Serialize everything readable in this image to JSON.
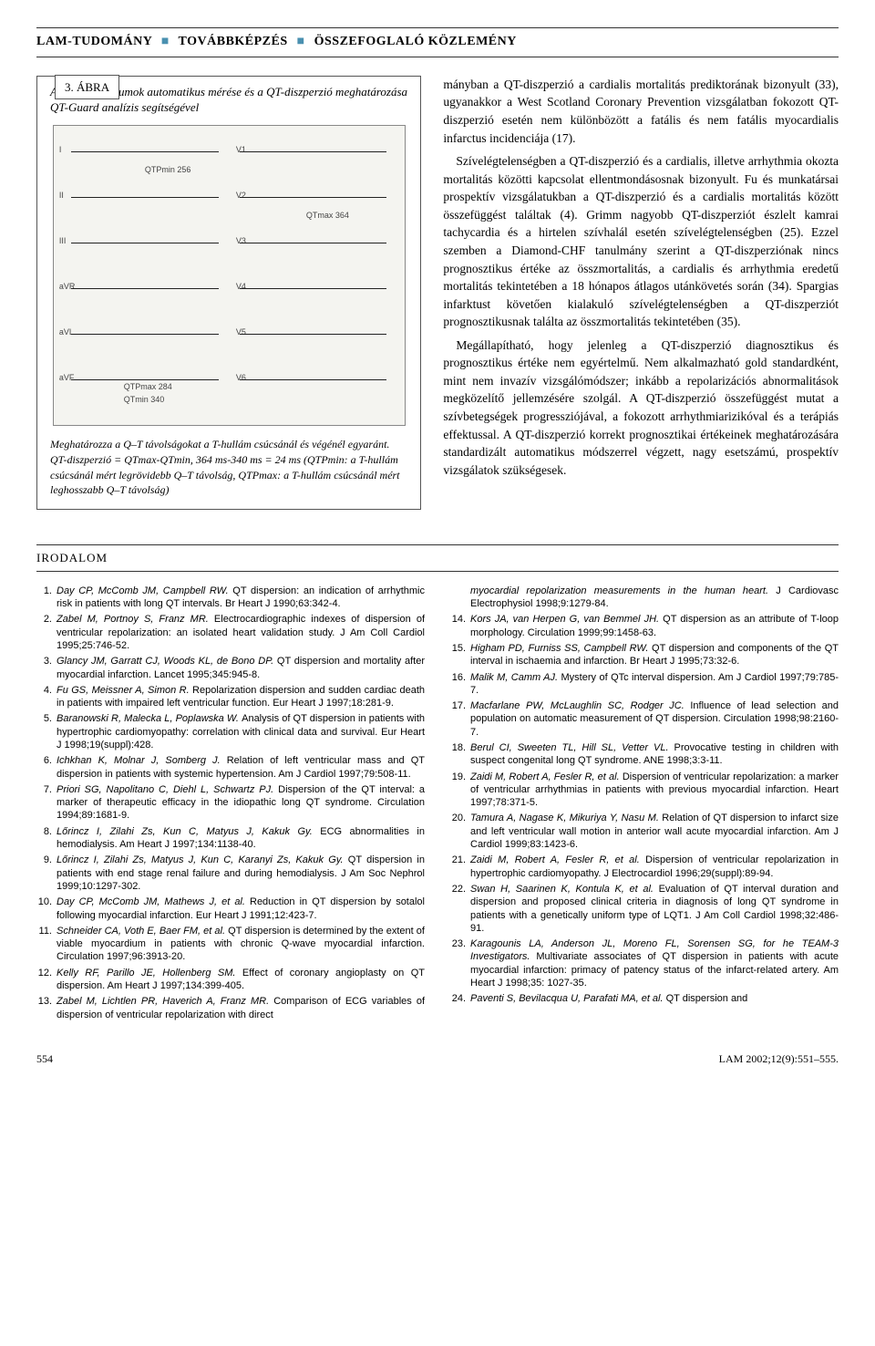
{
  "header": {
    "part1": "LAM-TUDOMÁNY",
    "part2": "TOVÁBBKÉPZÉS",
    "part3": "ÖSSZEFOGLALÓ KÖZLEMÉNY"
  },
  "figure": {
    "label": "3. ÁBRA",
    "title": "A QT-intervallumok automatikus mérése és a QT-diszperzió meghatározása QT-Guard analízis segítségével",
    "ecg_labels": {
      "qtpmin": "QTPmin 256",
      "qtpmax_left": "QTPmax 284",
      "qtmin": "QTmin 340",
      "qtmax_right": "QTmax 364",
      "leads_left": [
        "I",
        "II",
        "III",
        "aVR",
        "aVL",
        "aVF"
      ],
      "leads_right": [
        "V1",
        "V2",
        "V3",
        "V4",
        "V5",
        "V6"
      ]
    },
    "caption_1": "Meghatározza a Q–T távolságokat a T-hullám csúcsánál és végénél egyaránt.",
    "caption_2": "QT-diszperzió = QTmax-QTmin, 364 ms-340 ms = 24 ms (QTPmin: a T-hullám csúcsánál mért legrövidebb Q–T távolság, QTPmax: a T-hullám csúcsánál mért leghosszabb Q–T távolság)"
  },
  "body": {
    "p1": "mányban a QT-diszperzió a cardialis mortalitás prediktorának bizonyult (33), ugyanakkor a West Scotland Coronary Prevention vizsgálatban fokozott QT-diszperzió esetén nem különbözött a fatális és nem fatális myocardialis infarctus incidenciája (17).",
    "p2": "Szívelégtelenségben a QT-diszperzió és a cardialis, illetve arrhythmia okozta mortalitás közötti kapcsolat ellentmondásosnak bizonyult. Fu és munkatársai prospektív vizsgálatukban a QT-diszperzió és a cardialis mortalitás között összefüggést találtak (4). Grimm nagyobb QT-diszperziót észlelt kamrai tachycardia és a hirtelen szívhalál esetén szívelégtelenségben (25). Ezzel szemben a Diamond-CHF tanulmány szerint a QT-diszperziónak nincs prognosztikus értéke az összmortalitás, a cardialis és arrhythmia eredetű mortalitás tekintetében a 18 hónapos átlagos utánkövetés során (34). Spargias infarktust követően kialakuló szívelégtelenségben a QT-diszperziót prognosztikusnak találta az összmortalitás tekintetében (35).",
    "p3": "Megállapítható, hogy jelenleg a QT-diszperzió diagnosztikus és prognosztikus értéke nem egyértelmű. Nem alkalmazható gold standardként, mint nem invazív vizsgálómódszer; inkább a repolarizációs abnormalitások megközelítő jellemzésére szolgál. A QT-diszperzió összefüggést mutat a szívbetegségek progressziójával, a fokozott arrhythmiarizikóval és a terápiás effektussal. A QT-diszperzió korrekt prognosztikai értékeinek meghatározására standardizált automatikus módszerrel végzett, nagy esetszámú, prospektív vizsgálatok szükségesek."
  },
  "section": {
    "irodalom": "IRODALOM"
  },
  "refs_left": [
    {
      "n": "1.",
      "t": "Day CP, McComb JM, Campbell RW. QT dispersion: an indication of arrhythmic risk in patients with long QT intervals. Br Heart J 1990;63:342-4."
    },
    {
      "n": "2.",
      "t": "Zabel M, Portnoy S, Franz MR. Electrocardiographic indexes of dispersion of ventricular repolarization: an isolated heart validation study. J Am Coll Cardiol 1995;25:746-52."
    },
    {
      "n": "3.",
      "t": "Glancy JM, Garratt CJ, Woods KL, de Bono DP. QT dispersion and mortality after myocardial infarction. Lancet 1995;345:945-8."
    },
    {
      "n": "4.",
      "t": "Fu GS, Meissner A, Simon R. Repolarization dispersion and sudden cardiac death in patients with impaired left ventricular function. Eur Heart J 1997;18:281-9."
    },
    {
      "n": "5.",
      "t": "Baranowski R, Malecka L, Poplawska W. Analysis of QT dispersion in patients with hypertrophic cardiomyopathy: correlation with clinical data and survival. Eur Heart J 1998;19(suppl):428."
    },
    {
      "n": "6.",
      "t": "Ichkhan K, Molnar J, Somberg J. Relation of left ventricular mass and QT dispersion in patients with systemic hypertension. Am J Cardiol 1997;79:508-11."
    },
    {
      "n": "7.",
      "t": "Priori SG, Napolitano C, Diehl L, Schwartz PJ. Dispersion of the QT interval: a marker of therapeutic efficacy in the idiopathic long QT syndrome. Circulation 1994;89:1681-9."
    },
    {
      "n": "8.",
      "t": "Lőrincz I, Zilahi Zs, Kun C, Matyus J, Kakuk Gy. ECG abnormalities in hemodialysis. Am Heart J 1997;134:1138-40."
    },
    {
      "n": "9.",
      "t": "Lőrincz I, Zilahi Zs, Matyus J, Kun C, Karanyi Zs, Kakuk Gy. QT dispersion in patients with end stage renal failure and during hemodialysis. J Am Soc Nephrol 1999;10:1297-302."
    },
    {
      "n": "10.",
      "t": "Day CP, McComb JM, Mathews J, et al. Reduction in QT dispersion by sotalol following myocardial infarction. Eur Heart J 1991;12:423-7."
    },
    {
      "n": "11.",
      "t": "Schneider CA, Voth E, Baer FM, et al. QT dispersion is determined by the extent of viable myocardium in patients with chronic Q-wave myocardial infarction. Circulation 1997;96:3913-20."
    },
    {
      "n": "12.",
      "t": "Kelly RF, Parillo JE, Hollenberg SM. Effect of coronary angioplasty on QT dispersion. Am Heart J 1997;134:399-405."
    },
    {
      "n": "13.",
      "t": "Zabel M, Lichtlen PR, Haverich A, Franz MR. Comparison of ECG variables of dispersion of ventricular repolarization with direct"
    }
  ],
  "refs_right": [
    {
      "n": "",
      "t": "myocardial repolarization measurements in the human heart. J Cardiovasc Electrophysiol 1998;9:1279-84."
    },
    {
      "n": "14.",
      "t": "Kors JA, van Herpen G, van Bemmel JH. QT dispersion as an attribute of T-loop morphology. Circulation 1999;99:1458-63."
    },
    {
      "n": "15.",
      "t": "Higham PD, Furniss SS, Campbell RW. QT dispersion and components of the QT interval in ischaemia and infarction. Br Heart J 1995;73:32-6."
    },
    {
      "n": "16.",
      "t": "Malik M, Camm AJ. Mystery of QTc interval dispersion. Am J Cardiol 1997;79:785-7."
    },
    {
      "n": "17.",
      "t": "Macfarlane PW, McLaughlin SC, Rodger JC. Influence of lead selection and population on automatic measurement of QT dispersion. Circulation 1998;98:2160-7."
    },
    {
      "n": "18.",
      "t": "Berul CI, Sweeten TL, Hill SL, Vetter VL. Provocative testing in children with suspect congenital long QT syndrome. ANE 1998;3:3-11."
    },
    {
      "n": "19.",
      "t": "Zaidi M, Robert A, Fesler R, et al. Dispersion of ventricular repolarization: a marker of ventricular arrhythmias in patients with previous myocardial infarction. Heart 1997;78:371-5."
    },
    {
      "n": "20.",
      "t": "Tamura A, Nagase K, Mikuriya Y, Nasu M. Relation of QT dispersion to infarct size and left ventricular wall motion in anterior wall acute myocardial infarction. Am J Cardiol 1999;83:1423-6."
    },
    {
      "n": "21.",
      "t": "Zaidi M, Robert A, Fesler R, et al. Dispersion of ventricular repolarization in hypertrophic cardiomyopathy. J Electrocardiol 1996;29(suppl):89-94."
    },
    {
      "n": "22.",
      "t": "Swan H, Saarinen K, Kontula K, et al. Evaluation of QT interval duration and dispersion and proposed clinical criteria in diagnosis of long QT syndrome in patients with a genetically uniform type of LQT1. J Am Coll Cardiol 1998;32:486-91."
    },
    {
      "n": "23.",
      "t": "Karagounis LA, Anderson JL, Moreno FL, Sorensen SG, for he TEAM-3 Investigators. Multivariate associates of QT dispersion in patients with acute myocardial infarction: primacy of patency status of the infarct-related artery. Am Heart J 1998;35: 1027-35."
    },
    {
      "n": "24.",
      "t": "Paventi S, Bevilacqua U, Parafati MA, et al. QT dispersion and"
    }
  ],
  "footer": {
    "page": "554",
    "cite": "LAM 2002;12(9):551–555."
  },
  "colors": {
    "dot": "#4a90b0",
    "text": "#000000",
    "border": "#333333"
  }
}
